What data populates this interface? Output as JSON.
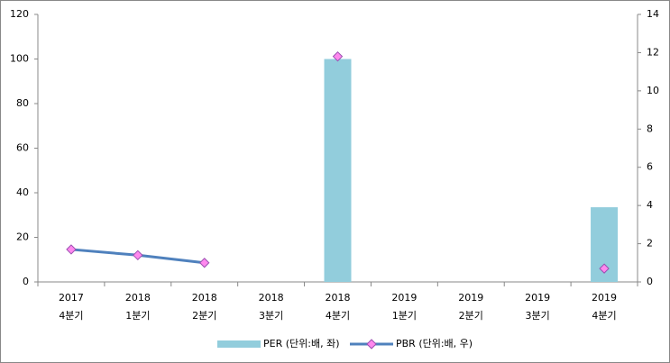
{
  "chart_data": {
    "type": "bar-line",
    "categories": [
      [
        "2017",
        "4분기"
      ],
      [
        "2018",
        "1분기"
      ],
      [
        "2018",
        "2분기"
      ],
      [
        "2018",
        "3분기"
      ],
      [
        "2018",
        "4분기"
      ],
      [
        "2019",
        "1분기"
      ],
      [
        "2019",
        "2분기"
      ],
      [
        "2019",
        "3분기"
      ],
      [
        "2019",
        "4분기"
      ]
    ],
    "series": [
      {
        "name": "PER (단위:배, 좌)",
        "type": "bar",
        "color": "#92cddc",
        "values": [
          null,
          null,
          null,
          null,
          100,
          null,
          null,
          null,
          33.5
        ]
      },
      {
        "name": "PBR (단위:배, 우)",
        "type": "line",
        "axis": "y2",
        "color": "#4f81bd",
        "marker_color": "#ff88ee",
        "values": [
          1.7,
          1.4,
          1.0,
          null,
          11.8,
          null,
          null,
          null,
          0.7
        ]
      }
    ],
    "ylim": [
      0,
      120
    ],
    "yticks": [
      0,
      20,
      40,
      60,
      80,
      100,
      120
    ],
    "y2lim": [
      0,
      14
    ],
    "y2ticks": [
      0,
      2,
      4,
      6,
      8,
      10,
      12,
      14
    ],
    "legend": "bottom"
  }
}
